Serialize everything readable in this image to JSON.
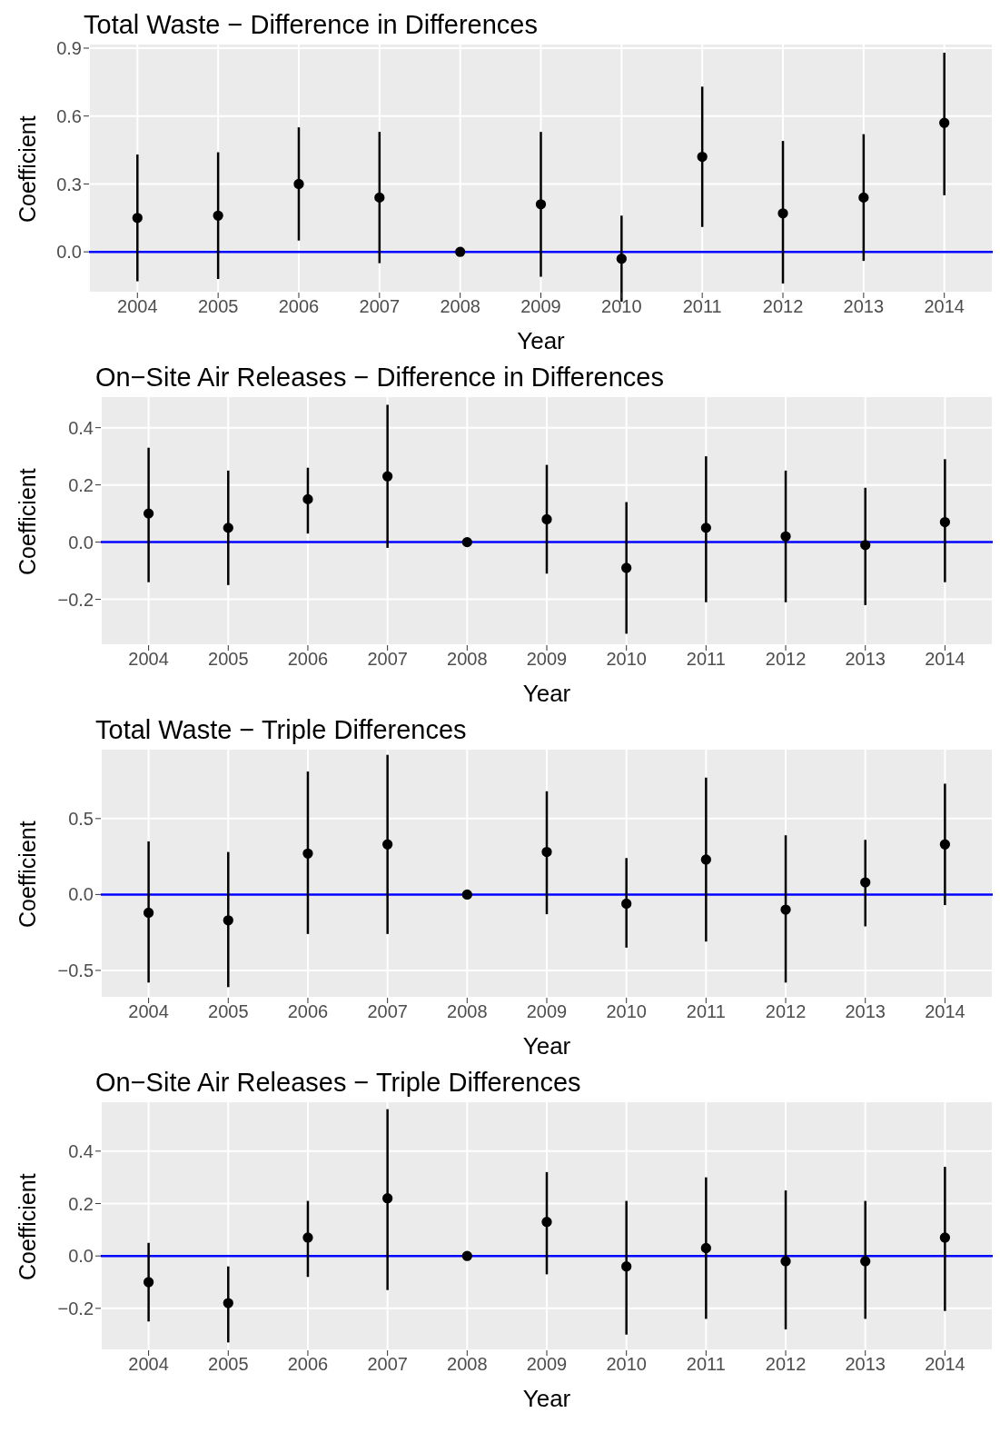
{
  "chart_data": [
    {
      "type": "scatter",
      "title": "Total Waste − Difference in Differences",
      "xlabel": "Year",
      "ylabel": "Coefficient",
      "categories": [
        "2004",
        "2005",
        "2006",
        "2007",
        "2008",
        "2009",
        "2010",
        "2011",
        "2012",
        "2013",
        "2014"
      ],
      "series": [
        {
          "color": "#000000",
          "values": [
            0.15,
            0.16,
            0.3,
            0.24,
            0,
            0.21,
            -0.03,
            0.42,
            0.17,
            0.24,
            0.57
          ],
          "errors": [
            [
              -0.13,
              0.43
            ],
            [
              -0.12,
              0.44
            ],
            [
              0.05,
              0.55
            ],
            [
              -0.05,
              0.53
            ],
            null,
            [
              -0.11,
              0.53
            ],
            [
              -0.22,
              0.16
            ],
            [
              0.11,
              0.73
            ],
            [
              -0.14,
              0.49
            ],
            [
              -0.04,
              0.52
            ],
            [
              0.25,
              0.88
            ]
          ]
        }
      ],
      "ylim": [
        -0.18,
        0.92
      ],
      "yticks": [
        {
          "value": 0,
          "label": "0.0"
        },
        {
          "value": 0.3,
          "label": "0.3"
        },
        {
          "value": 0.6,
          "label": "0.6"
        },
        {
          "value": 0.9,
          "label": "0.9"
        }
      ],
      "ref_lines": [
        {
          "axis": "y",
          "value": 0,
          "color": "#0000ff"
        }
      ],
      "grid": true,
      "marker": "circle",
      "legend": false
    },
    {
      "type": "scatter",
      "title": "On−Site Air Releases − Difference in Differences",
      "xlabel": "Year",
      "ylabel": "Coefficient",
      "categories": [
        "2004",
        "2005",
        "2006",
        "2007",
        "2008",
        "2009",
        "2010",
        "2011",
        "2012",
        "2013",
        "2014"
      ],
      "series": [
        {
          "color": "#000000",
          "values": [
            0.1,
            0.05,
            0.15,
            0.23,
            0,
            0.08,
            -0.09,
            0.05,
            0.02,
            -0.01,
            0.07
          ],
          "errors": [
            [
              -0.14,
              0.33
            ],
            [
              -0.15,
              0.25
            ],
            [
              0.03,
              0.26
            ],
            [
              -0.02,
              0.48
            ],
            null,
            [
              -0.11,
              0.27
            ],
            [
              -0.32,
              0.14
            ],
            [
              -0.21,
              0.3
            ],
            [
              -0.21,
              0.25
            ],
            [
              -0.22,
              0.19
            ],
            [
              -0.14,
              0.29
            ]
          ]
        }
      ],
      "ylim": [
        -0.36,
        0.51
      ],
      "yticks": [
        {
          "value": -0.2,
          "label": "−0.2"
        },
        {
          "value": 0,
          "label": "0.0"
        },
        {
          "value": 0.2,
          "label": "0.2"
        },
        {
          "value": 0.4,
          "label": "0.4"
        }
      ],
      "ref_lines": [
        {
          "axis": "y",
          "value": 0,
          "color": "#0000ff"
        }
      ],
      "grid": true,
      "marker": "circle",
      "legend": false
    },
    {
      "type": "scatter",
      "title": "Total Waste − Triple Differences",
      "xlabel": "Year",
      "ylabel": "Coefficient",
      "categories": [
        "2004",
        "2005",
        "2006",
        "2007",
        "2008",
        "2009",
        "2010",
        "2011",
        "2012",
        "2013",
        "2014"
      ],
      "series": [
        {
          "color": "#000000",
          "values": [
            -0.12,
            -0.17,
            0.27,
            0.33,
            0,
            0.28,
            -0.06,
            0.23,
            -0.1,
            0.08,
            0.33
          ],
          "errors": [
            [
              -0.58,
              0.35
            ],
            [
              -0.61,
              0.28
            ],
            [
              -0.26,
              0.81
            ],
            [
              -0.26,
              0.92
            ],
            null,
            [
              -0.13,
              0.68
            ],
            [
              -0.35,
              0.24
            ],
            [
              -0.31,
              0.77
            ],
            [
              -0.58,
              0.39
            ],
            [
              -0.21,
              0.36
            ],
            [
              -0.07,
              0.73
            ]
          ]
        }
      ],
      "ylim": [
        -0.68,
        0.96
      ],
      "yticks": [
        {
          "value": -0.5,
          "label": "−0.5"
        },
        {
          "value": 0,
          "label": "0.0"
        },
        {
          "value": 0.5,
          "label": "0.5"
        }
      ],
      "ref_lines": [
        {
          "axis": "y",
          "value": 0,
          "color": "#0000ff"
        }
      ],
      "grid": true,
      "marker": "circle",
      "legend": false
    },
    {
      "type": "scatter",
      "title": "On−Site Air Releases − Triple Differences",
      "xlabel": "Year",
      "ylabel": "Coefficient",
      "categories": [
        "2004",
        "2005",
        "2006",
        "2007",
        "2008",
        "2009",
        "2010",
        "2011",
        "2012",
        "2013",
        "2014"
      ],
      "series": [
        {
          "color": "#000000",
          "values": [
            -0.1,
            -0.18,
            0.07,
            0.22,
            0,
            0.13,
            -0.04,
            0.03,
            -0.02,
            -0.02,
            0.07
          ],
          "errors": [
            [
              -0.25,
              0.05
            ],
            [
              -0.33,
              -0.04
            ],
            [
              -0.08,
              0.21
            ],
            [
              -0.13,
              0.56
            ],
            null,
            [
              -0.07,
              0.32
            ],
            [
              -0.3,
              0.21
            ],
            [
              -0.24,
              0.3
            ],
            [
              -0.28,
              0.25
            ],
            [
              -0.24,
              0.21
            ],
            [
              -0.21,
              0.34
            ]
          ]
        }
      ],
      "ylim": [
        -0.36,
        0.59
      ],
      "yticks": [
        {
          "value": -0.2,
          "label": "−0.2"
        },
        {
          "value": 0,
          "label": "0.0"
        },
        {
          "value": 0.2,
          "label": "0.2"
        },
        {
          "value": 0.4,
          "label": "0.4"
        }
      ],
      "ref_lines": [
        {
          "axis": "y",
          "value": 0,
          "color": "#0000ff"
        }
      ],
      "grid": true,
      "marker": "circle",
      "legend": false
    }
  ]
}
